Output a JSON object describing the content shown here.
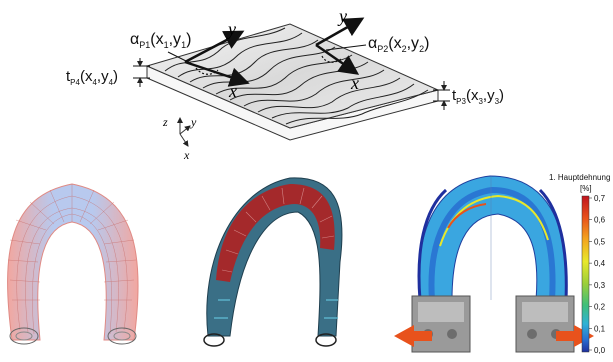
{
  "top_diagram": {
    "labels": {
      "alpha_p1": {
        "symbol": "α",
        "sub": "P1",
        "args": "(x",
        "a1": "1",
        "sep": ",y",
        "a2": "1",
        "close": ")"
      },
      "alpha_p2": {
        "symbol": "α",
        "sub": "P2",
        "args": "(x",
        "a1": "2",
        "sep": ",y",
        "a2": "2",
        "close": ")"
      },
      "t_p4": {
        "symbol": "t",
        "sub": "P4",
        "args": "(x",
        "a1": "4",
        "sep": ",y",
        "a2": "4",
        "close": ")"
      },
      "t_p3": {
        "symbol": "t",
        "sub": "P3",
        "args": "(x",
        "a1": "3",
        "sep": ",y",
        "a2": "3",
        "close": ")"
      },
      "local_y1": "y",
      "local_x1": "x",
      "local_y2": "y",
      "local_x2": "x"
    },
    "global_axes": {
      "z": "z",
      "y": "y",
      "x": "x"
    }
  },
  "colorbar": {
    "title": "1. Hauptdehnung",
    "unit": "[%]",
    "ticks": [
      "0,7",
      "0,6",
      "0,5",
      "0,4",
      "0,3",
      "0,2",
      "0,1",
      "0,0"
    ],
    "colors": [
      "#c0141e",
      "#e8521c",
      "#f3a61f",
      "#e8e82a",
      "#9ccf3a",
      "#3fbf7a",
      "#2fb2d6",
      "#2a6fd1",
      "#1f2f9e"
    ]
  },
  "panels": {
    "left": "mesh-horseshoe",
    "middle": "fiber-horseshoe",
    "right": "strain-field-horseshoe"
  }
}
